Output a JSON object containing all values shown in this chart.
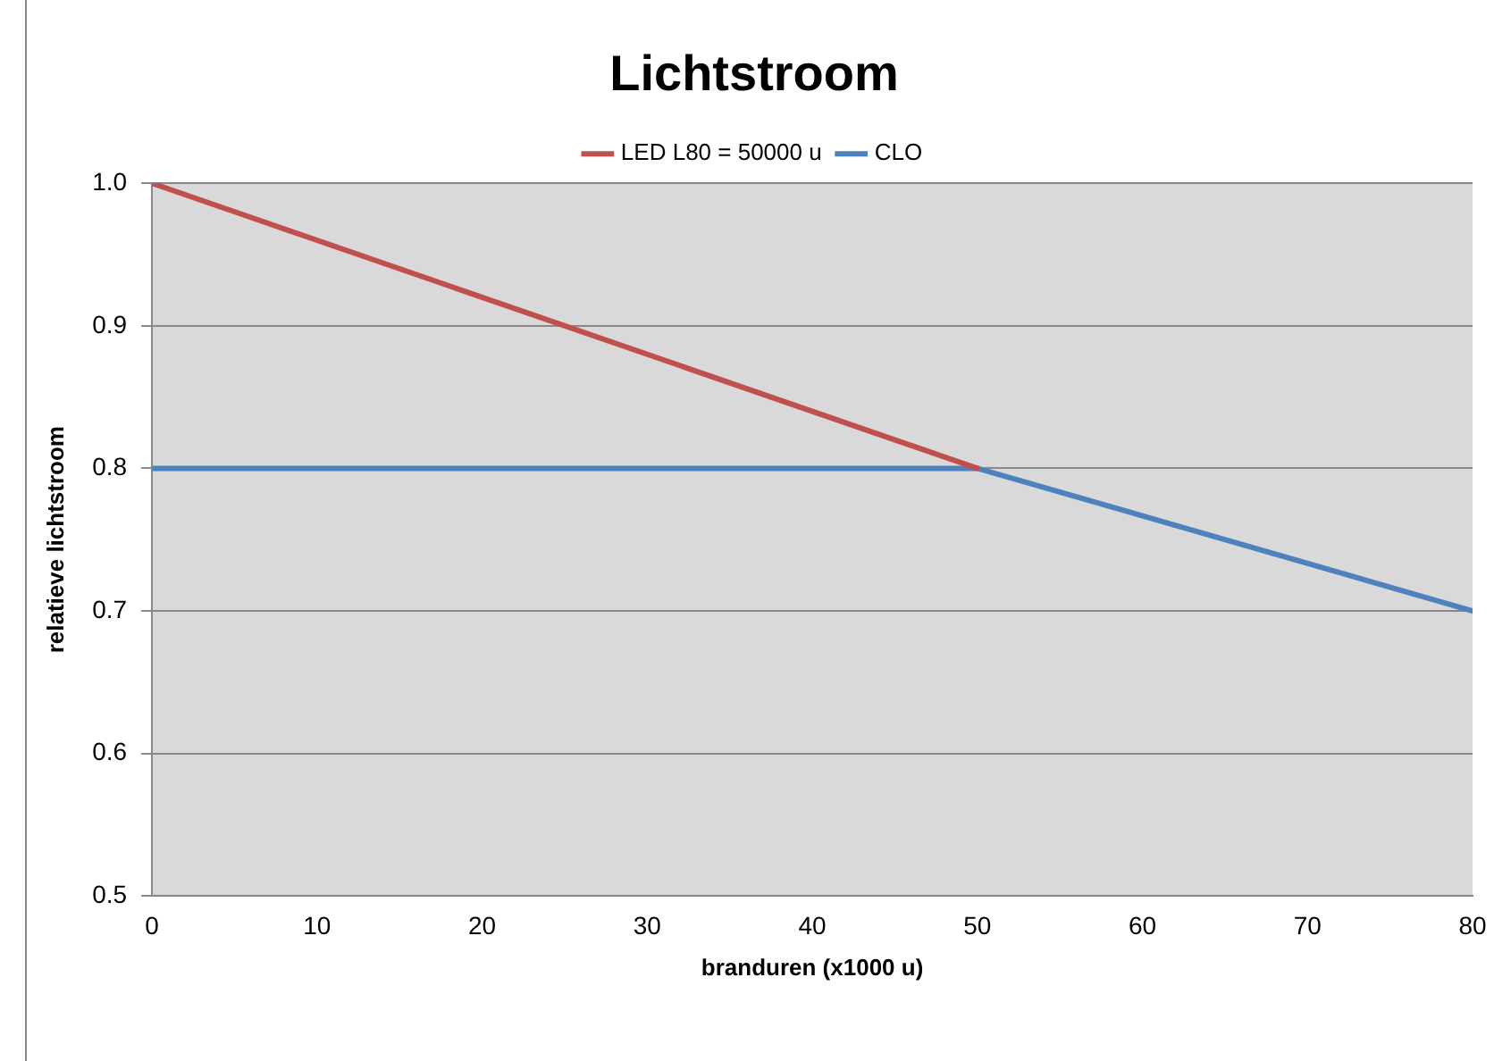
{
  "chart_data": {
    "type": "line",
    "title": "Lichtstroom",
    "xlabel": "branduren (x1000 u)",
    "ylabel": "relatieve lichtstroom",
    "series": [
      {
        "name": "LED L80 = 50000 u",
        "color": "#c0504d",
        "x": [
          0,
          50
        ],
        "values": [
          1.0,
          0.8
        ]
      },
      {
        "name": "CLO",
        "color": "#4f81bd",
        "x": [
          0,
          50,
          80
        ],
        "values": [
          0.8,
          0.8,
          0.7
        ]
      }
    ],
    "xlim": [
      0,
      80
    ],
    "xticks": [
      0,
      10,
      20,
      30,
      40,
      50,
      60,
      70,
      80
    ],
    "ylim": [
      0.5,
      1.0
    ],
    "yticks": [
      {
        "value": 0.5,
        "label": "0.5"
      },
      {
        "value": 0.6,
        "label": "0.6"
      },
      {
        "value": 0.7,
        "label": "0.7"
      },
      {
        "value": 0.8,
        "label": "0.8"
      },
      {
        "value": 0.9,
        "label": "0.9"
      },
      {
        "value": 1.0,
        "label": "1.0"
      }
    ],
    "grid": "y",
    "legend": "top",
    "marker": "none",
    "line_style": "solid"
  }
}
